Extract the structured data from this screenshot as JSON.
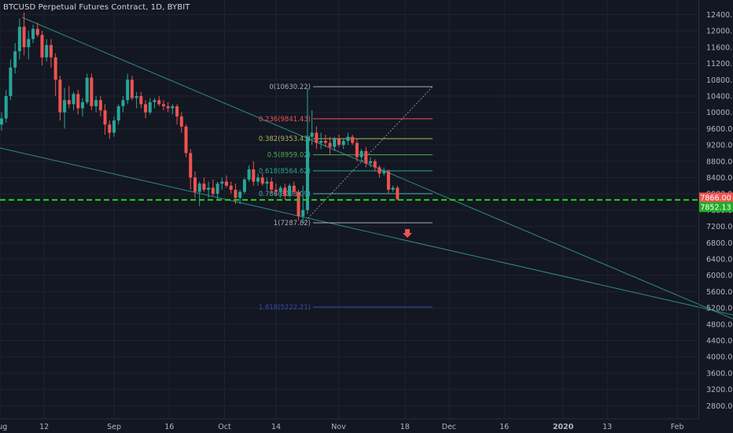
{
  "header": {
    "title": "BTCUSD Perpetual Futures Contract, 1D, BYBIT"
  },
  "chart_data": {
    "type": "candlestick",
    "y_ticks": [
      2800,
      3200,
      3600,
      4000,
      4400,
      4800,
      5200,
      5600,
      6000,
      6400,
      6800,
      7200,
      7600,
      8000,
      8400,
      8800,
      9200,
      9600,
      10000,
      10400,
      10800,
      11200,
      11600,
      12000,
      12400
    ],
    "y_tick_labels": [
      "2800.00",
      "3200.00",
      "3600.00",
      "4000.00",
      "4400.00",
      "4800.00",
      "5200.00",
      "5600.00",
      "6000.00",
      "6400.00",
      "6800.00",
      "7200.00",
      "7600.00",
      "8000.00",
      "8400.00",
      "8800.00",
      "9200.00",
      "9600.00",
      "10000.00",
      "10400.00",
      "10800.00",
      "11200.00",
      "11600.00",
      "12000.00",
      "12400.00"
    ],
    "ylim": [
      2560,
      12600
    ],
    "x_labels": [
      "Aug",
      "12",
      "Sep",
      "16",
      "Oct",
      "14",
      "Nov",
      "18",
      "Dec",
      "16",
      "2020",
      "13",
      "Feb"
    ],
    "x_label_days": [
      0,
      12,
      31,
      46,
      61,
      75,
      92,
      110,
      122,
      137,
      153,
      165,
      184
    ],
    "price_labels": [
      {
        "value": 7866.0,
        "text": "7866.00",
        "color": "#ef5350"
      },
      {
        "value": 7852.13,
        "text": "7852.13",
        "color": "#22ab29"
      }
    ],
    "support_line": {
      "value": 7852.13,
      "color": "#22d11b"
    },
    "fibonacci": [
      {
        "level": "0",
        "price": 10630.22,
        "label": "0(10630.22)",
        "color": "#a8a9ad"
      },
      {
        "level": "0.236",
        "price": 9841.43,
        "label": "0.236(9841.43)",
        "color": "#ef5350"
      },
      {
        "level": "0.382",
        "price": 9353.43,
        "label": "0.382(9353.43)",
        "color": "#aab95a"
      },
      {
        "level": "0.5",
        "price": 8959.02,
        "label": "0.5(8959.02)",
        "color": "#4caf50"
      },
      {
        "level": "0.618",
        "price": 8564.62,
        "label": "0.618(8564.62)",
        "color": "#26a69a"
      },
      {
        "level": "0.786",
        "price": 8003.09,
        "label": "0.786(8003.09)",
        "color": "#4fb1b0"
      },
      {
        "level": "1",
        "price": 7287.82,
        "label": "1(7287.82)",
        "color": "#a8a9ad"
      },
      {
        "level": "1.618",
        "price": 5222.21,
        "label": "1.618(5222.21)",
        "color": "#3949ab"
      }
    ],
    "candles": [
      {
        "o": 9700,
        "h": 10000,
        "l": 9550,
        "c": 9850
      },
      {
        "o": 9850,
        "h": 10550,
        "l": 9750,
        "c": 10400
      },
      {
        "o": 10400,
        "h": 11300,
        "l": 10300,
        "c": 11100
      },
      {
        "o": 11100,
        "h": 11700,
        "l": 10950,
        "c": 11500
      },
      {
        "o": 11500,
        "h": 12300,
        "l": 11300,
        "c": 12100
      },
      {
        "o": 12100,
        "h": 12450,
        "l": 11400,
        "c": 11600
      },
      {
        "o": 11600,
        "h": 12000,
        "l": 11300,
        "c": 11800
      },
      {
        "o": 11800,
        "h": 12150,
        "l": 11700,
        "c": 12050
      },
      {
        "o": 12050,
        "h": 12200,
        "l": 11850,
        "c": 11900
      },
      {
        "o": 11900,
        "h": 12000,
        "l": 11150,
        "c": 11350
      },
      {
        "o": 11350,
        "h": 11800,
        "l": 11250,
        "c": 11650
      },
      {
        "o": 11650,
        "h": 11800,
        "l": 11100,
        "c": 11350
      },
      {
        "o": 11350,
        "h": 11450,
        "l": 10400,
        "c": 10800
      },
      {
        "o": 10800,
        "h": 10900,
        "l": 9800,
        "c": 10000
      },
      {
        "o": 10000,
        "h": 10600,
        "l": 9600,
        "c": 10300
      },
      {
        "o": 10300,
        "h": 10650,
        "l": 10100,
        "c": 10200
      },
      {
        "o": 10200,
        "h": 10500,
        "l": 10050,
        "c": 10450
      },
      {
        "o": 10450,
        "h": 10550,
        "l": 9950,
        "c": 10100
      },
      {
        "o": 10100,
        "h": 10350,
        "l": 9900,
        "c": 10250
      },
      {
        "o": 10250,
        "h": 10950,
        "l": 10200,
        "c": 10850
      },
      {
        "o": 10850,
        "h": 10950,
        "l": 10050,
        "c": 10150
      },
      {
        "o": 10150,
        "h": 10400,
        "l": 10000,
        "c": 10300
      },
      {
        "o": 10300,
        "h": 10400,
        "l": 9900,
        "c": 10050
      },
      {
        "o": 10050,
        "h": 10200,
        "l": 9450,
        "c": 9700
      },
      {
        "o": 9700,
        "h": 9800,
        "l": 9350,
        "c": 9500
      },
      {
        "o": 9500,
        "h": 9900,
        "l": 9400,
        "c": 9800
      },
      {
        "o": 9800,
        "h": 10200,
        "l": 9700,
        "c": 10150
      },
      {
        "o": 10150,
        "h": 10400,
        "l": 10000,
        "c": 10300
      },
      {
        "o": 10300,
        "h": 10950,
        "l": 10200,
        "c": 10800
      },
      {
        "o": 10800,
        "h": 10900,
        "l": 10300,
        "c": 10350
      },
      {
        "o": 10350,
        "h": 10500,
        "l": 10100,
        "c": 10400
      },
      {
        "o": 10400,
        "h": 10500,
        "l": 10100,
        "c": 10200
      },
      {
        "o": 10200,
        "h": 10300,
        "l": 9850,
        "c": 10000
      },
      {
        "o": 10000,
        "h": 10350,
        "l": 9950,
        "c": 10250
      },
      {
        "o": 10250,
        "h": 10350,
        "l": 10100,
        "c": 10300
      },
      {
        "o": 10300,
        "h": 10400,
        "l": 10150,
        "c": 10200
      },
      {
        "o": 10200,
        "h": 10300,
        "l": 10050,
        "c": 10150
      },
      {
        "o": 10150,
        "h": 10250,
        "l": 10000,
        "c": 10100
      },
      {
        "o": 10100,
        "h": 10200,
        "l": 9950,
        "c": 10150
      },
      {
        "o": 10150,
        "h": 10200,
        "l": 9700,
        "c": 9900
      },
      {
        "o": 9900,
        "h": 10000,
        "l": 9500,
        "c": 9650
      },
      {
        "o": 9650,
        "h": 9700,
        "l": 8900,
        "c": 9000
      },
      {
        "o": 9000,
        "h": 9100,
        "l": 8100,
        "c": 8400
      },
      {
        "o": 8400,
        "h": 8550,
        "l": 7900,
        "c": 8050
      },
      {
        "o": 8050,
        "h": 8300,
        "l": 7700,
        "c": 8250
      },
      {
        "o": 8250,
        "h": 8400,
        "l": 8050,
        "c": 8100
      },
      {
        "o": 8100,
        "h": 8300,
        "l": 7900,
        "c": 8150
      },
      {
        "o": 8150,
        "h": 8350,
        "l": 7950,
        "c": 8000
      },
      {
        "o": 8000,
        "h": 8300,
        "l": 7850,
        "c": 8250
      },
      {
        "o": 8250,
        "h": 8400,
        "l": 8100,
        "c": 8300
      },
      {
        "o": 8300,
        "h": 8450,
        "l": 8150,
        "c": 8200
      },
      {
        "o": 8200,
        "h": 8300,
        "l": 8000,
        "c": 8100
      },
      {
        "o": 8100,
        "h": 8250,
        "l": 7750,
        "c": 7900
      },
      {
        "o": 7900,
        "h": 8100,
        "l": 7750,
        "c": 8050
      },
      {
        "o": 8050,
        "h": 8400,
        "l": 8000,
        "c": 8350
      },
      {
        "o": 8350,
        "h": 8700,
        "l": 8300,
        "c": 8600
      },
      {
        "o": 8600,
        "h": 8800,
        "l": 8200,
        "c": 8300
      },
      {
        "o": 8300,
        "h": 8500,
        "l": 8200,
        "c": 8400
      },
      {
        "o": 8400,
        "h": 8500,
        "l": 8200,
        "c": 8250
      },
      {
        "o": 8250,
        "h": 8400,
        "l": 8100,
        "c": 8300
      },
      {
        "o": 8300,
        "h": 8400,
        "l": 8000,
        "c": 8100
      },
      {
        "o": 8100,
        "h": 8250,
        "l": 7950,
        "c": 8050
      },
      {
        "o": 8050,
        "h": 8200,
        "l": 7900,
        "c": 8150
      },
      {
        "o": 8150,
        "h": 8250,
        "l": 7850,
        "c": 7950
      },
      {
        "o": 7950,
        "h": 8250,
        "l": 7900,
        "c": 8200
      },
      {
        "o": 8200,
        "h": 8300,
        "l": 7950,
        "c": 8050
      },
      {
        "o": 8050,
        "h": 8100,
        "l": 7350,
        "c": 7450
      },
      {
        "o": 7450,
        "h": 8200,
        "l": 7300,
        "c": 7600
      },
      {
        "o": 7600,
        "h": 10600,
        "l": 7500,
        "c": 9400
      },
      {
        "o": 9400,
        "h": 10050,
        "l": 9200,
        "c": 9500
      },
      {
        "o": 9500,
        "h": 9650,
        "l": 9100,
        "c": 9250
      },
      {
        "o": 9250,
        "h": 9500,
        "l": 9100,
        "c": 9300
      },
      {
        "o": 9300,
        "h": 9450,
        "l": 9150,
        "c": 9250
      },
      {
        "o": 9250,
        "h": 9400,
        "l": 8950,
        "c": 9150
      },
      {
        "o": 9150,
        "h": 9400,
        "l": 9050,
        "c": 9350
      },
      {
        "o": 9350,
        "h": 9450,
        "l": 9150,
        "c": 9200
      },
      {
        "o": 9200,
        "h": 9350,
        "l": 9100,
        "c": 9300
      },
      {
        "o": 9300,
        "h": 9500,
        "l": 9200,
        "c": 9400
      },
      {
        "o": 9400,
        "h": 9450,
        "l": 9200,
        "c": 9250
      },
      {
        "o": 9250,
        "h": 9350,
        "l": 8800,
        "c": 8900
      },
      {
        "o": 8900,
        "h": 9100,
        "l": 8800,
        "c": 9050
      },
      {
        "o": 9050,
        "h": 9150,
        "l": 8650,
        "c": 8750
      },
      {
        "o": 8750,
        "h": 8900,
        "l": 8650,
        "c": 8800
      },
      {
        "o": 8800,
        "h": 8850,
        "l": 8550,
        "c": 8650
      },
      {
        "o": 8650,
        "h": 8700,
        "l": 8400,
        "c": 8500
      },
      {
        "o": 8500,
        "h": 8650,
        "l": 8450,
        "c": 8550
      },
      {
        "o": 8550,
        "h": 8600,
        "l": 8000,
        "c": 8100
      },
      {
        "o": 8100,
        "h": 8200,
        "l": 8050,
        "c": 8150
      },
      {
        "o": 8150,
        "h": 8200,
        "l": 7850,
        "c": 7866
      }
    ]
  }
}
